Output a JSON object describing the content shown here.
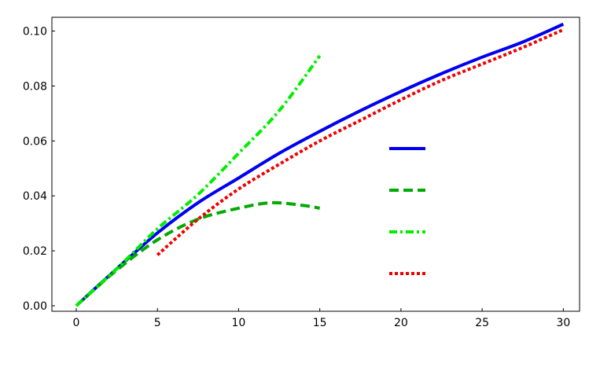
{
  "chart_data": {
    "type": "line",
    "title": "",
    "xlabel": "",
    "ylabel": "",
    "xlim": [
      -1.5,
      31
    ],
    "ylim": [
      -0.002,
      0.105
    ],
    "x_ticks": [
      0,
      5,
      10,
      15,
      20,
      25,
      30
    ],
    "x_tick_labels": [
      "0",
      "5",
      "10",
      "15",
      "20",
      "25",
      "30"
    ],
    "y_ticks": [
      0.0,
      0.02,
      0.04,
      0.06,
      0.08,
      0.1
    ],
    "y_tick_labels": [
      "0.00",
      "0.02",
      "0.04",
      "0.06",
      "0.08",
      "0.10"
    ],
    "grid": false,
    "legend": "center-right",
    "series": [
      {
        "color": "#0000ee",
        "style": "solid",
        "x": [
          0,
          2.5,
          5,
          7.5,
          10,
          12.5,
          15,
          17.5,
          20,
          22.5,
          25,
          27.5,
          30
        ],
        "y": [
          0.0,
          0.0135,
          0.0265,
          0.0375,
          0.0465,
          0.0555,
          0.0635,
          0.071,
          0.078,
          0.0845,
          0.0905,
          0.096,
          0.1025
        ]
      },
      {
        "color": "#00aa00",
        "style": "dashed",
        "x": [
          0,
          2.5,
          5,
          7.5,
          10,
          12,
          14,
          15
        ],
        "y": [
          0.0,
          0.013,
          0.024,
          0.0315,
          0.0355,
          0.0375,
          0.0365,
          0.0355
        ]
      },
      {
        "color": "#00ee00",
        "style": "dashdot",
        "x": [
          0,
          2.5,
          5,
          7.5,
          10,
          12.5,
          15
        ],
        "y": [
          0.0,
          0.0135,
          0.028,
          0.0405,
          0.0555,
          0.071,
          0.091
        ]
      },
      {
        "color": "#ee0000",
        "style": "dotted",
        "x": [
          5,
          7.5,
          10,
          12.5,
          15,
          17.5,
          20,
          22.5,
          25,
          27.5,
          30
        ],
        "y": [
          0.0185,
          0.0315,
          0.0425,
          0.0515,
          0.06,
          0.0675,
          0.075,
          0.082,
          0.088,
          0.094,
          0.1005
        ]
      }
    ]
  }
}
